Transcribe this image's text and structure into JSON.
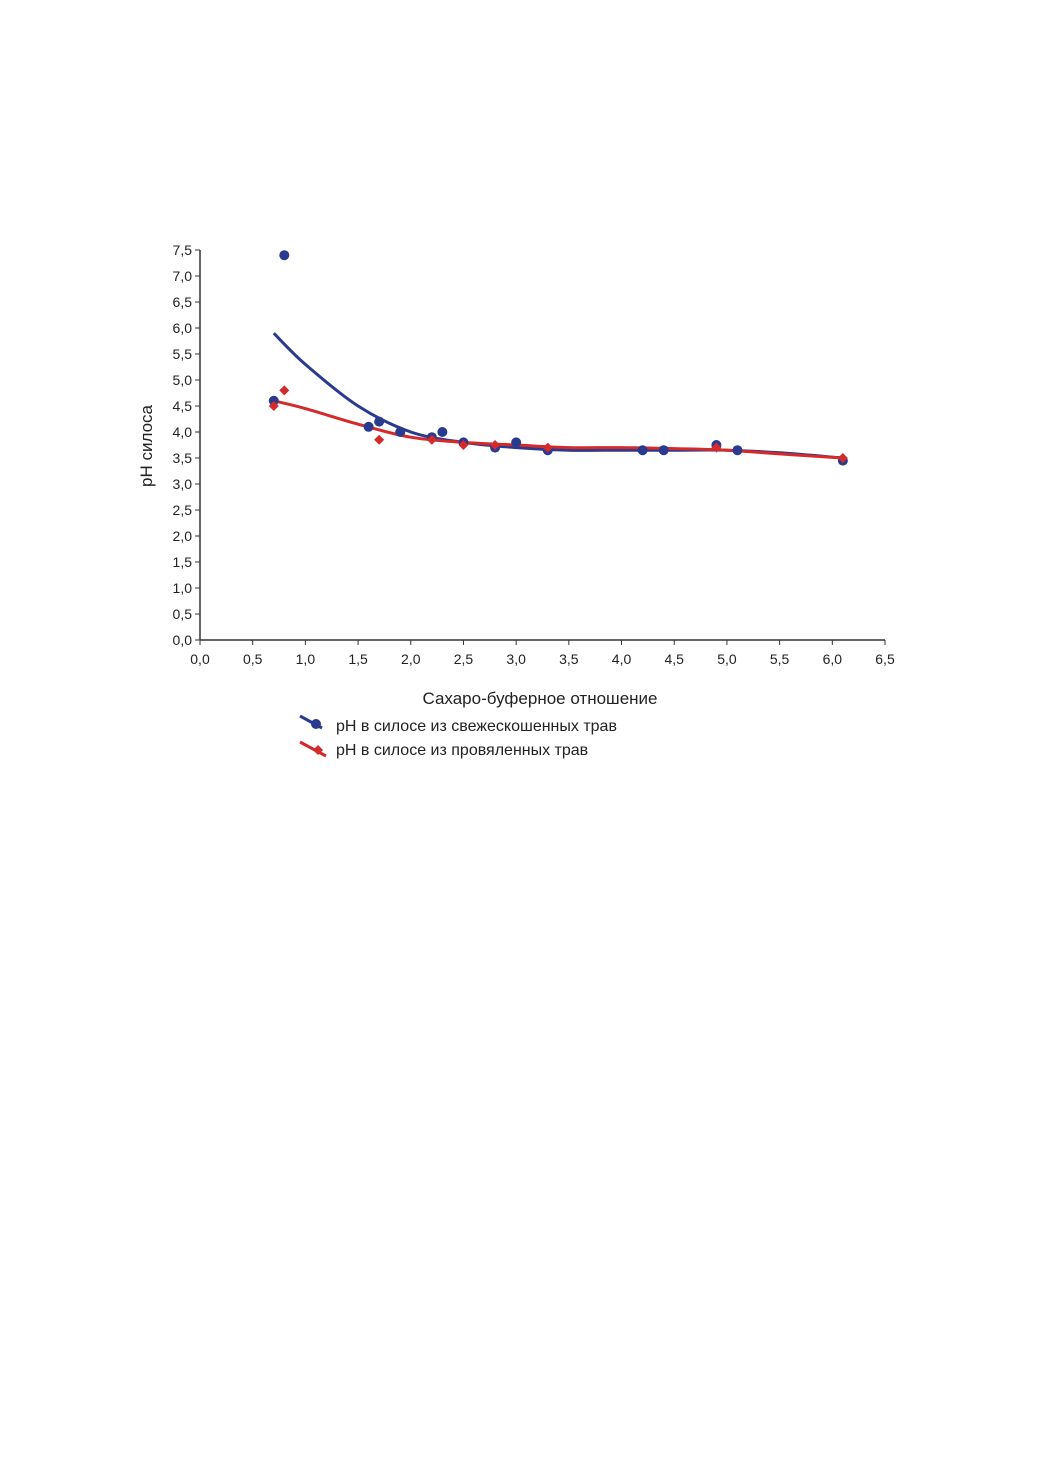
{
  "chart_data": {
    "type": "scatter",
    "title": "",
    "xlabel": "Сахаро-буферное отношение",
    "ylabel": "рН силоса",
    "xlim": [
      0,
      6.5
    ],
    "ylim": [
      0,
      7.5
    ],
    "x_ticks": [
      "0,0",
      "0,5",
      "1,0",
      "1,5",
      "2,0",
      "2,5",
      "3,0",
      "3,5",
      "4,0",
      "4,5",
      "5,0",
      "5,5",
      "6,0",
      "6,5"
    ],
    "y_ticks": [
      "0,0",
      "0,5",
      "1,0",
      "1,5",
      "2,0",
      "2,5",
      "3,0",
      "3,5",
      "4,0",
      "4,5",
      "5,0",
      "5,5",
      "6,0",
      "6,5",
      "7,0",
      "7,5"
    ],
    "grid": false,
    "legend_position": "bottom",
    "series": [
      {
        "name": "рН в силосе из свежескошенных трав",
        "color": "#2a3a8f",
        "points": [
          [
            0.7,
            4.6
          ],
          [
            0.8,
            7.4
          ],
          [
            1.6,
            4.1
          ],
          [
            1.7,
            4.2
          ],
          [
            1.9,
            4.0
          ],
          [
            2.2,
            3.9
          ],
          [
            2.3,
            4.0
          ],
          [
            2.5,
            3.8
          ],
          [
            2.8,
            3.7
          ],
          [
            3.0,
            3.8
          ],
          [
            3.3,
            3.65
          ],
          [
            4.2,
            3.65
          ],
          [
            4.4,
            3.65
          ],
          [
            4.9,
            3.75
          ],
          [
            5.1,
            3.65
          ],
          [
            6.1,
            3.45
          ]
        ],
        "trend": [
          [
            0.7,
            5.9
          ],
          [
            1.0,
            5.3
          ],
          [
            1.5,
            4.5
          ],
          [
            2.0,
            4.0
          ],
          [
            2.5,
            3.8
          ],
          [
            3.0,
            3.7
          ],
          [
            3.5,
            3.65
          ],
          [
            4.0,
            3.65
          ],
          [
            4.5,
            3.65
          ],
          [
            5.0,
            3.65
          ],
          [
            5.5,
            3.6
          ],
          [
            6.1,
            3.5
          ]
        ]
      },
      {
        "name": "рН в силосе из провяленных трав",
        "color": "#d42a2a",
        "points": [
          [
            0.7,
            4.5
          ],
          [
            0.8,
            4.8
          ],
          [
            1.7,
            3.85
          ],
          [
            2.2,
            3.85
          ],
          [
            2.5,
            3.75
          ],
          [
            2.8,
            3.75
          ],
          [
            3.3,
            3.7
          ],
          [
            4.9,
            3.7
          ],
          [
            6.1,
            3.5
          ]
        ],
        "trend": [
          [
            0.7,
            4.6
          ],
          [
            1.0,
            4.45
          ],
          [
            1.5,
            4.15
          ],
          [
            2.0,
            3.9
          ],
          [
            2.5,
            3.8
          ],
          [
            3.0,
            3.75
          ],
          [
            3.5,
            3.7
          ],
          [
            4.0,
            3.7
          ],
          [
            4.5,
            3.68
          ],
          [
            5.0,
            3.65
          ],
          [
            5.5,
            3.58
          ],
          [
            6.1,
            3.5
          ]
        ]
      }
    ]
  }
}
